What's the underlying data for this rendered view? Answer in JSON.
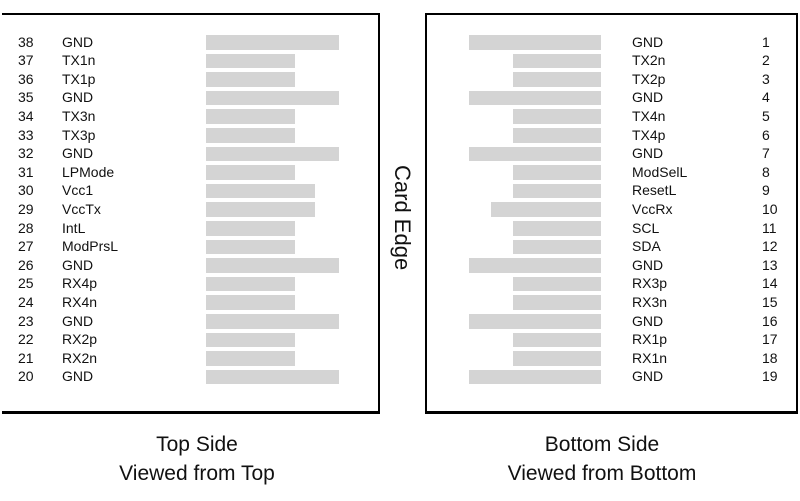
{
  "colors": {
    "bar": "#d4d4d4",
    "border": "#000000",
    "text": "#111111"
  },
  "card_edge_label": "Card Edge",
  "top_side": {
    "caption_line1": "Top Side",
    "caption_line2": "Viewed from Top",
    "pins": [
      {
        "num": "38",
        "signal": "GND",
        "length": "long"
      },
      {
        "num": "37",
        "signal": "TX1n",
        "length": "short"
      },
      {
        "num": "36",
        "signal": "TX1p",
        "length": "short"
      },
      {
        "num": "35",
        "signal": "GND",
        "length": "long"
      },
      {
        "num": "34",
        "signal": "TX3n",
        "length": "short"
      },
      {
        "num": "33",
        "signal": "TX3p",
        "length": "short"
      },
      {
        "num": "32",
        "signal": "GND",
        "length": "long"
      },
      {
        "num": "31",
        "signal": "LPMode",
        "length": "short"
      },
      {
        "num": "30",
        "signal": "Vcc1",
        "length": "medium"
      },
      {
        "num": "29",
        "signal": "VccTx",
        "length": "medium"
      },
      {
        "num": "28",
        "signal": "IntL",
        "length": "short"
      },
      {
        "num": "27",
        "signal": "ModPrsL",
        "length": "short"
      },
      {
        "num": "26",
        "signal": "GND",
        "length": "long"
      },
      {
        "num": "25",
        "signal": "RX4p",
        "length": "short"
      },
      {
        "num": "24",
        "signal": "RX4n",
        "length": "short"
      },
      {
        "num": "23",
        "signal": "GND",
        "length": "long"
      },
      {
        "num": "22",
        "signal": "RX2p",
        "length": "short"
      },
      {
        "num": "21",
        "signal": "RX2n",
        "length": "short"
      },
      {
        "num": "20",
        "signal": "GND",
        "length": "long"
      }
    ]
  },
  "bottom_side": {
    "caption_line1": "Bottom Side",
    "caption_line2": "Viewed from Bottom",
    "pins": [
      {
        "num": "1",
        "signal": "GND",
        "length": "long"
      },
      {
        "num": "2",
        "signal": "TX2n",
        "length": "short"
      },
      {
        "num": "3",
        "signal": "TX2p",
        "length": "short"
      },
      {
        "num": "4",
        "signal": "GND",
        "length": "long"
      },
      {
        "num": "5",
        "signal": "TX4n",
        "length": "short"
      },
      {
        "num": "6",
        "signal": "TX4p",
        "length": "short"
      },
      {
        "num": "7",
        "signal": "GND",
        "length": "long"
      },
      {
        "num": "8",
        "signal": "ModSelL",
        "length": "short"
      },
      {
        "num": "9",
        "signal": "ResetL",
        "length": "short"
      },
      {
        "num": "10",
        "signal": "VccRx",
        "length": "medium"
      },
      {
        "num": "11",
        "signal": "SCL",
        "length": "short"
      },
      {
        "num": "12",
        "signal": "SDA",
        "length": "short"
      },
      {
        "num": "13",
        "signal": "GND",
        "length": "long"
      },
      {
        "num": "14",
        "signal": "RX3p",
        "length": "short"
      },
      {
        "num": "15",
        "signal": "RX3n",
        "length": "short"
      },
      {
        "num": "16",
        "signal": "GND",
        "length": "long"
      },
      {
        "num": "17",
        "signal": "RX1p",
        "length": "short"
      },
      {
        "num": "18",
        "signal": "RX1n",
        "length": "short"
      },
      {
        "num": "19",
        "signal": "GND",
        "length": "long"
      }
    ]
  }
}
